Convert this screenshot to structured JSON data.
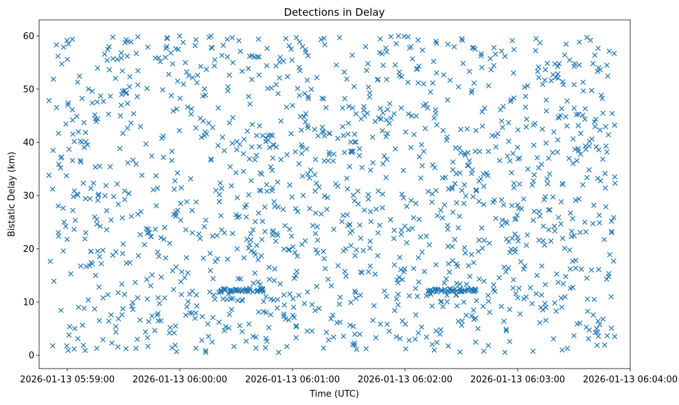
{
  "chart_data": {
    "type": "scatter",
    "title": "Detections in Delay",
    "xlabel": "Time (UTC)",
    "ylabel": "Bistatic Delay (km)",
    "marker": "x",
    "color": "#1f77b4",
    "grid": false,
    "x_ticks": [
      "2026-01-13 05:59:00",
      "2026-01-13 06:00:00",
      "2026-01-13 06:01:00",
      "2026-01-13 06:02:00",
      "2026-01-13 06:03:00",
      "2026-01-13 06:04:00"
    ],
    "y_ticks": [
      0,
      10,
      20,
      30,
      40,
      50,
      60
    ],
    "xlim": [
      "2026-01-13 05:58:45",
      "2026-01-13 06:04:00"
    ],
    "ylim": [
      -2.5,
      63
    ],
    "data_range": {
      "x": [
        "2026-01-13 05:58:50",
        "2026-01-13 06:03:52"
      ],
      "y": [
        0.5,
        60
      ]
    },
    "approx_point_count": 1500,
    "clusters": [
      {
        "x": [
          "2026-01-13 06:00:21",
          "2026-01-13 06:00:45"
        ],
        "y": 12.2
      },
      {
        "x": [
          "2026-01-13 06:02:12",
          "2026-01-13 06:02:38"
        ],
        "y": 12.2
      }
    ]
  }
}
